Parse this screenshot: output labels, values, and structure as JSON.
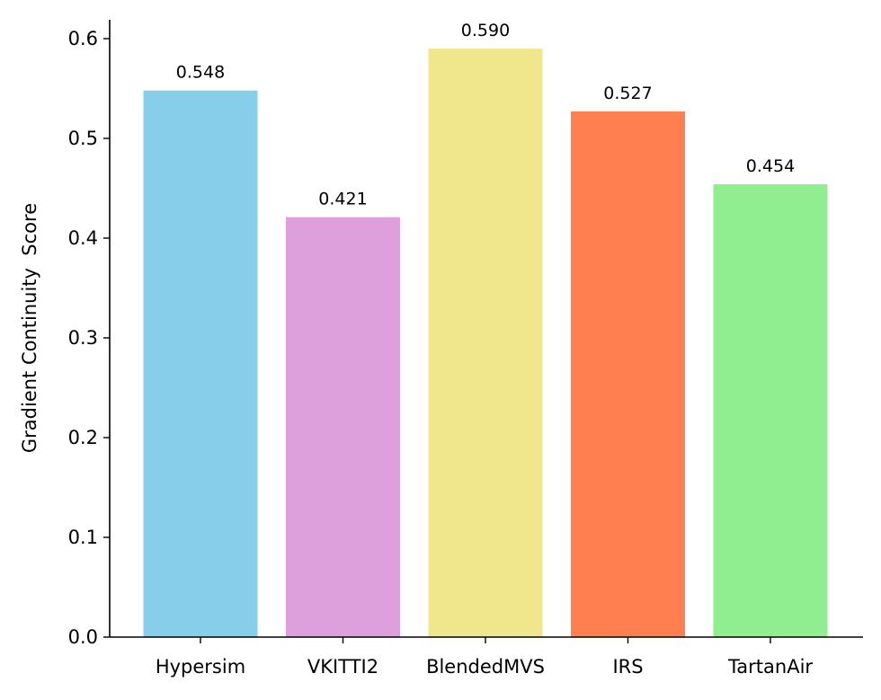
{
  "chart_data": {
    "type": "bar",
    "title": "",
    "xlabel": "",
    "ylabel": "Gradient Continuity  Score",
    "categories": [
      "Hypersim",
      "VKITTI2",
      "BlendedMVS",
      "IRS",
      "TartanAir"
    ],
    "values": [
      0.548,
      0.421,
      0.59,
      0.527,
      0.454
    ],
    "data_labels": [
      "0.548",
      "0.421",
      "0.590",
      "0.527",
      "0.454"
    ],
    "colors": [
      "#87CEEB",
      "#DDA0DD",
      "#F0E68C",
      "#FF7F50",
      "#90EE90"
    ],
    "ylim": [
      0,
      0.62
    ],
    "yticks": [
      "0.0",
      "0.1",
      "0.2",
      "0.3",
      "0.4",
      "0.5",
      "0.6"
    ],
    "grid": false,
    "legend": "none"
  }
}
